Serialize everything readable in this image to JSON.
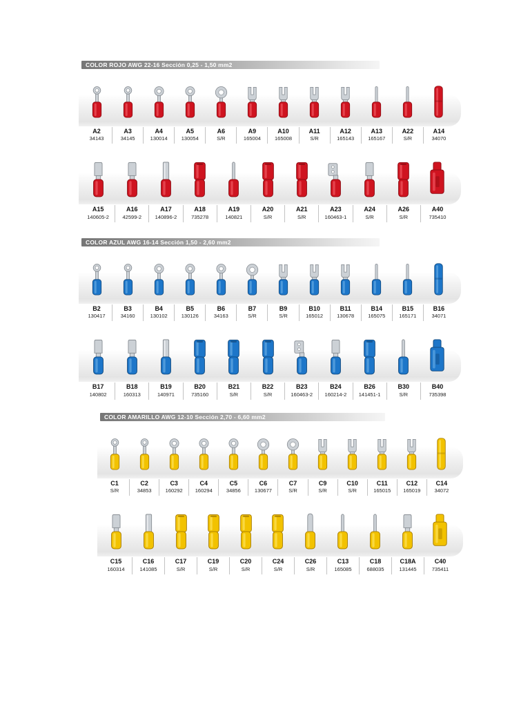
{
  "page": {
    "background": "#ffffff"
  },
  "metal": {
    "fill": "#ccd1d6",
    "stroke": "#81878d",
    "highlight": "#eef0f2"
  },
  "sections": [
    {
      "id": "rojo",
      "header": "COLOR ROJO AWG 22-16 Sección 0,25 - 1,50 mm2",
      "palette": {
        "main": "#cf1420",
        "dark": "#8a0b12",
        "light": "#f4636d"
      },
      "rows": [
        {
          "items": [
            {
              "code": "A2",
              "part": "34143",
              "shape": "ring-s"
            },
            {
              "code": "A3",
              "part": "34145",
              "shape": "ring-s"
            },
            {
              "code": "A4",
              "part": "130014",
              "shape": "ring"
            },
            {
              "code": "A5",
              "part": "130054",
              "shape": "ring"
            },
            {
              "code": "A6",
              "part": "S/R",
              "shape": "ring-l"
            },
            {
              "code": "A9",
              "part": "165004",
              "shape": "fork"
            },
            {
              "code": "A10",
              "part": "165008",
              "shape": "fork"
            },
            {
              "code": "A11",
              "part": "S/R",
              "shape": "fork"
            },
            {
              "code": "A12",
              "part": "165143",
              "shape": "fork"
            },
            {
              "code": "A13",
              "part": "165167",
              "shape": "pin"
            },
            {
              "code": "A22",
              "part": "S/R",
              "shape": "pin"
            },
            {
              "code": "A14",
              "part": "34070",
              "shape": "butt"
            }
          ]
        },
        {
          "items": [
            {
              "code": "A15",
              "part": "140605-2",
              "shape": "male"
            },
            {
              "code": "A16",
              "part": "42599-2",
              "shape": "male"
            },
            {
              "code": "A17",
              "part": "140896-2",
              "shape": "blade"
            },
            {
              "code": "A18",
              "part": "735278",
              "shape": "female"
            },
            {
              "code": "A19",
              "part": "140821",
              "shape": "pin"
            },
            {
              "code": "A20",
              "part": "S/R",
              "shape": "female"
            },
            {
              "code": "A21",
              "part": "S/R",
              "shape": "female"
            },
            {
              "code": "A23",
              "part": "160463-1",
              "shape": "flag"
            },
            {
              "code": "A24",
              "part": "S/R",
              "shape": "male"
            },
            {
              "code": "A26",
              "part": "S/R",
              "shape": "female"
            },
            {
              "code": "A40",
              "part": "735410",
              "shape": "tap"
            }
          ]
        }
      ]
    },
    {
      "id": "azul",
      "header": "COLOR AZUL AWG 16-14 Sección 1,50 - 2,60 mm2",
      "palette": {
        "main": "#1d76c9",
        "dark": "#11497e",
        "light": "#6fb3e8"
      },
      "rows": [
        {
          "items": [
            {
              "code": "B2",
              "part": "130417",
              "shape": "ring-s"
            },
            {
              "code": "B3",
              "part": "34160",
              "shape": "ring-s"
            },
            {
              "code": "B4",
              "part": "130102",
              "shape": "ring"
            },
            {
              "code": "B5",
              "part": "130126",
              "shape": "ring"
            },
            {
              "code": "B6",
              "part": "34163",
              "shape": "ring"
            },
            {
              "code": "B7",
              "part": "S/R",
              "shape": "ring-l"
            },
            {
              "code": "B9",
              "part": "S/R",
              "shape": "fork"
            },
            {
              "code": "B10",
              "part": "165012",
              "shape": "fork"
            },
            {
              "code": "B11",
              "part": "130678",
              "shape": "fork"
            },
            {
              "code": "B14",
              "part": "165075",
              "shape": "pin"
            },
            {
              "code": "B15",
              "part": "165171",
              "shape": "pin"
            },
            {
              "code": "B16",
              "part": "34071",
              "shape": "butt"
            }
          ]
        },
        {
          "items": [
            {
              "code": "B17",
              "part": "140802",
              "shape": "male"
            },
            {
              "code": "B18",
              "part": "160313",
              "shape": "male"
            },
            {
              "code": "B19",
              "part": "140971",
              "shape": "blade"
            },
            {
              "code": "B20",
              "part": "735160",
              "shape": "female"
            },
            {
              "code": "B21",
              "part": "S/R",
              "shape": "female"
            },
            {
              "code": "B22",
              "part": "S/R",
              "shape": "female"
            },
            {
              "code": "B23",
              "part": "160463-2",
              "shape": "flag"
            },
            {
              "code": "B24",
              "part": "160214-2",
              "shape": "male"
            },
            {
              "code": "B26",
              "part": "141451-1",
              "shape": "female"
            },
            {
              "code": "B30",
              "part": "S/R",
              "shape": "pin"
            },
            {
              "code": "B40",
              "part": "735398",
              "shape": "tap"
            }
          ]
        }
      ]
    },
    {
      "id": "amarillo",
      "header": "COLOR AMARILLO AWG 12-10 Sección 2,70 - 6,60 mm2",
      "palette": {
        "main": "#f2c200",
        "dark": "#a67c00",
        "light": "#ffe86b"
      },
      "rows": [
        {
          "items": [
            {
              "code": "C1",
              "part": "S/R",
              "shape": "ring-s"
            },
            {
              "code": "C2",
              "part": "34853",
              "shape": "ring-s"
            },
            {
              "code": "C3",
              "part": "160292",
              "shape": "ring"
            },
            {
              "code": "C4",
              "part": "160294",
              "shape": "ring"
            },
            {
              "code": "C5",
              "part": "34856",
              "shape": "ring"
            },
            {
              "code": "C6",
              "part": "130677",
              "shape": "ring-l"
            },
            {
              "code": "C7",
              "part": "S/R",
              "shape": "ring-l"
            },
            {
              "code": "C9",
              "part": "S/R",
              "shape": "fork"
            },
            {
              "code": "C10",
              "part": "S/R",
              "shape": "fork"
            },
            {
              "code": "C11",
              "part": "165015",
              "shape": "fork"
            },
            {
              "code": "C12",
              "part": "165019",
              "shape": "fork"
            },
            {
              "code": "C14",
              "part": "34072",
              "shape": "butt"
            }
          ]
        },
        {
          "items": [
            {
              "code": "C15",
              "part": "160314",
              "shape": "male"
            },
            {
              "code": "C16",
              "part": "141085",
              "shape": "blade"
            },
            {
              "code": "C17",
              "part": "S/R",
              "shape": "female"
            },
            {
              "code": "C19",
              "part": "S/R",
              "shape": "female"
            },
            {
              "code": "C20",
              "part": "S/R",
              "shape": "female"
            },
            {
              "code": "C24",
              "part": "S/R",
              "shape": "female"
            },
            {
              "code": "C26",
              "part": "S/R",
              "shape": "bullet"
            },
            {
              "code": "C13",
              "part": "165085",
              "shape": "pin"
            },
            {
              "code": "C18",
              "part": "688035",
              "shape": "pin"
            },
            {
              "code": "C18A",
              "part": "131445",
              "shape": "male"
            },
            {
              "code": "C40",
              "part": "735411",
              "shape": "tap"
            }
          ]
        }
      ]
    }
  ]
}
